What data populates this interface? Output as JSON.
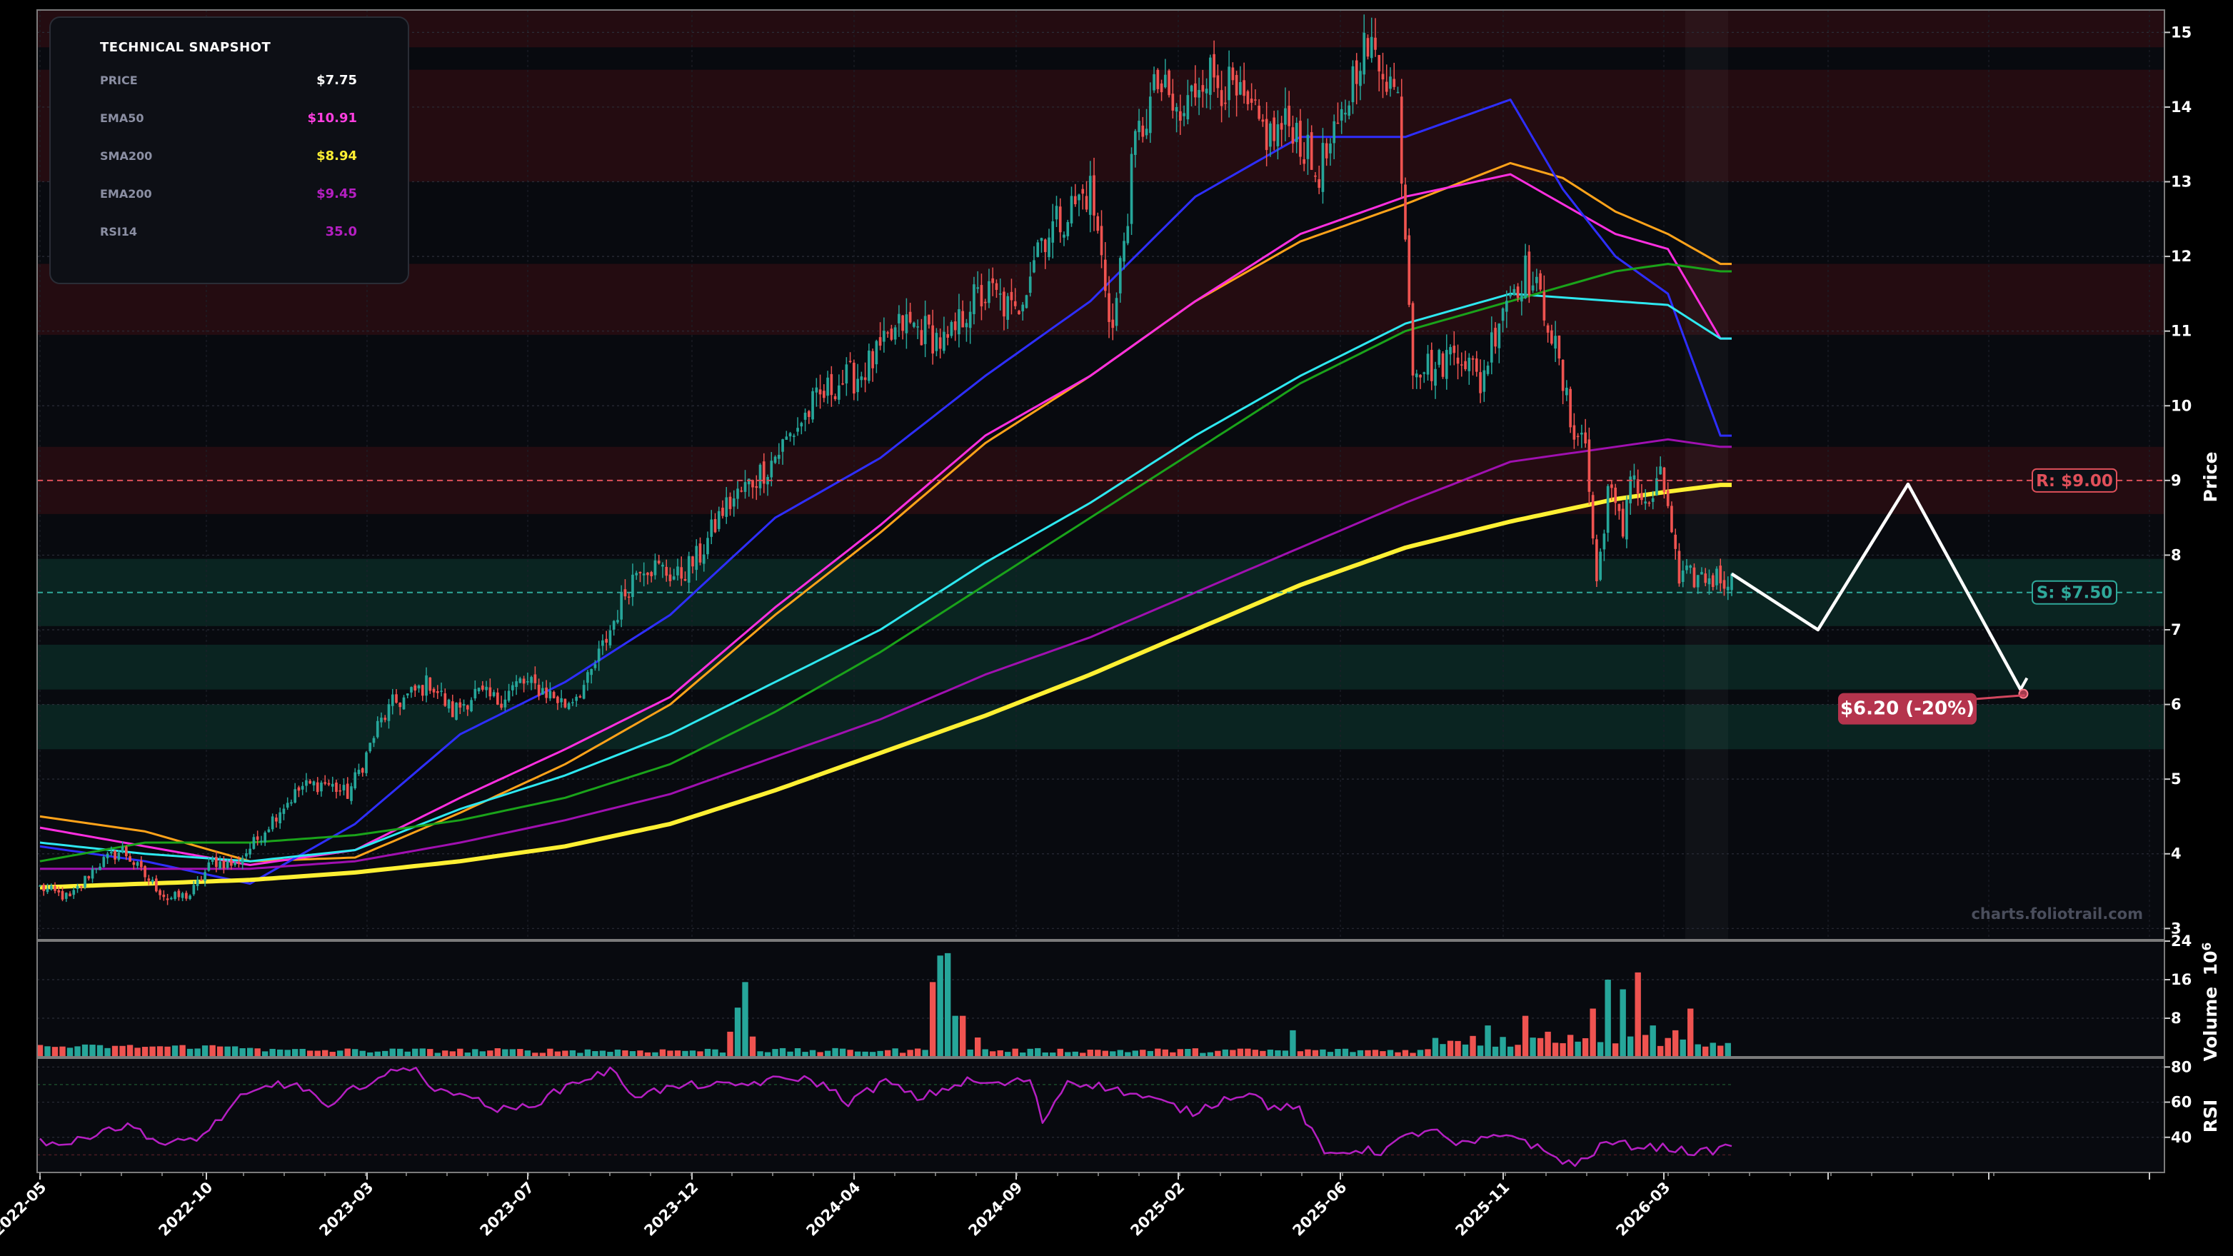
{
  "snapshot": {
    "title": "TECHNICAL SNAPSHOT",
    "rows": [
      {
        "label": "PRICE",
        "value": "$7.75",
        "color": "#ffffff"
      },
      {
        "label": "EMA50",
        "value": "$10.91",
        "color": "#ff3fe0"
      },
      {
        "label": "SMA200",
        "value": "$8.94",
        "color": "#fff033"
      },
      {
        "label": "EMA200",
        "value": "$9.45",
        "color": "#b51fc2"
      },
      {
        "label": "RSI14",
        "value": "35.0",
        "color": "#b51fc2"
      }
    ]
  },
  "watermark": "charts.foliotrail.com",
  "chart_data": {
    "type": "candlestick",
    "x_tick_labels": [
      "2022-05",
      "2022-10",
      "2023-03",
      "2023-07",
      "2023-12",
      "2024-04",
      "2024-09",
      "2025-02",
      "2025-06",
      "2025-11",
      "2026-03"
    ],
    "price_axis": {
      "label": "Price",
      "ticks": [
        3,
        4,
        5,
        6,
        7,
        8,
        9,
        10,
        11,
        12,
        13,
        14,
        15
      ],
      "range": [
        2.85,
        15.3
      ]
    },
    "volume_axis": {
      "label": "Volume",
      "exponent_label": "10",
      "exponent": "6",
      "ticks": [
        8,
        16,
        24
      ],
      "range": [
        0,
        24
      ]
    },
    "rsi_axis": {
      "label": "RSI",
      "ticks": [
        40,
        60,
        80
      ],
      "range": [
        20,
        85
      ]
    },
    "resistance": {
      "value": 9.0,
      "label": "R: $9.00",
      "color": "#e0505a"
    },
    "support": {
      "value": 7.5,
      "label": "S: $7.50",
      "color": "#2fa89a"
    },
    "target": {
      "value": 6.2,
      "label": "$6.20 (-20%)"
    },
    "resistance_zones": [
      [
        14.8,
        15.3
      ],
      [
        13.0,
        14.5
      ],
      [
        10.95,
        11.9
      ],
      [
        8.55,
        9.45
      ]
    ],
    "support_zones": [
      [
        7.05,
        7.95
      ],
      [
        6.2,
        6.8
      ],
      [
        5.4,
        6.0
      ]
    ],
    "price_anchors": [
      [
        0,
        3.55
      ],
      [
        8,
        3.4
      ],
      [
        15,
        3.85
      ],
      [
        22,
        4.05
      ],
      [
        28,
        3.7
      ],
      [
        34,
        3.4
      ],
      [
        40,
        3.45
      ],
      [
        46,
        3.9
      ],
      [
        52,
        3.85
      ],
      [
        58,
        4.2
      ],
      [
        64,
        4.6
      ],
      [
        70,
        4.9
      ],
      [
        76,
        4.95
      ],
      [
        82,
        4.8
      ],
      [
        86,
        5.2
      ],
      [
        90,
        5.7
      ],
      [
        94,
        6.0
      ],
      [
        98,
        6.1
      ],
      [
        104,
        6.3
      ],
      [
        110,
        5.9
      ],
      [
        116,
        6.15
      ],
      [
        122,
        6.05
      ],
      [
        128,
        6.3
      ],
      [
        134,
        6.2
      ],
      [
        140,
        6.0
      ],
      [
        146,
        6.3
      ],
      [
        152,
        7.0
      ],
      [
        156,
        7.5
      ],
      [
        160,
        7.9
      ],
      [
        166,
        7.8
      ],
      [
        170,
        7.7
      ],
      [
        176,
        8.0
      ],
      [
        182,
        8.6
      ],
      [
        188,
        8.9
      ],
      [
        194,
        9.2
      ],
      [
        200,
        9.6
      ],
      [
        206,
        10.0
      ],
      [
        212,
        10.3
      ],
      [
        218,
        10.4
      ],
      [
        224,
        10.7
      ],
      [
        230,
        11.1
      ],
      [
        236,
        11.0
      ],
      [
        242,
        10.8
      ],
      [
        248,
        11.4
      ],
      [
        254,
        11.5
      ],
      [
        260,
        11.2
      ],
      [
        266,
        12.2
      ],
      [
        272,
        12.5
      ],
      [
        280,
        12.9
      ],
      [
        286,
        11.0
      ],
      [
        292,
        13.5
      ],
      [
        298,
        14.3
      ],
      [
        304,
        13.8
      ],
      [
        310,
        14.5
      ],
      [
        316,
        14.3
      ],
      [
        322,
        13.9
      ],
      [
        328,
        13.6
      ],
      [
        334,
        13.8
      ],
      [
        340,
        13.1
      ],
      [
        346,
        13.6
      ],
      [
        352,
        14.8
      ],
      [
        358,
        14.6
      ],
      [
        362,
        14.1
      ],
      [
        366,
        10.6
      ],
      [
        372,
        10.5
      ],
      [
        378,
        10.8
      ],
      [
        384,
        10.3
      ],
      [
        390,
        11.4
      ],
      [
        396,
        11.8
      ],
      [
        402,
        11.2
      ],
      [
        408,
        9.8
      ],
      [
        412,
        9.5
      ],
      [
        415,
        7.6
      ],
      [
        418,
        8.9
      ],
      [
        422,
        8.3
      ],
      [
        424,
        9.2
      ],
      [
        428,
        8.6
      ],
      [
        432,
        9.0
      ],
      [
        434,
        8.7
      ],
      [
        437,
        7.6
      ],
      [
        439,
        7.7
      ]
    ],
    "ma_series": [
      {
        "color": "#ffa31a",
        "anchors": [
          [
            0,
            4.5
          ],
          [
            28,
            4.3
          ],
          [
            56,
            3.9
          ],
          [
            84,
            3.95
          ],
          [
            112,
            4.55
          ],
          [
            140,
            5.2
          ],
          [
            168,
            6.0
          ],
          [
            196,
            7.2
          ],
          [
            224,
            8.3
          ],
          [
            252,
            9.5
          ],
          [
            280,
            10.4
          ],
          [
            308,
            11.4
          ],
          [
            336,
            12.2
          ],
          [
            364,
            12.7
          ],
          [
            392,
            13.25
          ],
          [
            406,
            13.05
          ],
          [
            420,
            12.6
          ],
          [
            434,
            12.3
          ],
          [
            448,
            11.9
          ]
        ]
      },
      {
        "color": "#ff2fe0",
        "anchors": [
          [
            0,
            4.35
          ],
          [
            28,
            4.1
          ],
          [
            56,
            3.85
          ],
          [
            84,
            4.05
          ],
          [
            112,
            4.75
          ],
          [
            140,
            5.4
          ],
          [
            168,
            6.1
          ],
          [
            196,
            7.3
          ],
          [
            224,
            8.4
          ],
          [
            252,
            9.6
          ],
          [
            280,
            10.4
          ],
          [
            308,
            11.4
          ],
          [
            336,
            12.3
          ],
          [
            364,
            12.8
          ],
          [
            392,
            13.1
          ],
          [
            406,
            12.7
          ],
          [
            420,
            12.3
          ],
          [
            434,
            12.1
          ],
          [
            448,
            10.9
          ]
        ]
      },
      {
        "color": "#2e2eff",
        "anchors": [
          [
            0,
            4.1
          ],
          [
            28,
            3.9
          ],
          [
            56,
            3.6
          ],
          [
            84,
            4.4
          ],
          [
            112,
            5.6
          ],
          [
            140,
            6.3
          ],
          [
            168,
            7.2
          ],
          [
            196,
            8.5
          ],
          [
            224,
            9.3
          ],
          [
            252,
            10.4
          ],
          [
            280,
            11.4
          ],
          [
            308,
            12.8
          ],
          [
            336,
            13.6
          ],
          [
            364,
            13.6
          ],
          [
            392,
            14.1
          ],
          [
            406,
            12.9
          ],
          [
            420,
            12.0
          ],
          [
            434,
            11.5
          ],
          [
            448,
            9.6
          ]
        ]
      },
      {
        "color": "#2ee8f0",
        "anchors": [
          [
            0,
            4.15
          ],
          [
            28,
            4.0
          ],
          [
            56,
            3.9
          ],
          [
            84,
            4.05
          ],
          [
            112,
            4.6
          ],
          [
            140,
            5.05
          ],
          [
            168,
            5.6
          ],
          [
            196,
            6.3
          ],
          [
            224,
            7.0
          ],
          [
            252,
            7.9
          ],
          [
            280,
            8.7
          ],
          [
            308,
            9.6
          ],
          [
            336,
            10.4
          ],
          [
            364,
            11.1
          ],
          [
            392,
            11.5
          ],
          [
            406,
            11.45
          ],
          [
            420,
            11.4
          ],
          [
            434,
            11.35
          ],
          [
            448,
            10.9
          ]
        ]
      },
      {
        "color": "#1aa31a",
        "anchors": [
          [
            0,
            3.9
          ],
          [
            28,
            4.15
          ],
          [
            56,
            4.15
          ],
          [
            84,
            4.25
          ],
          [
            112,
            4.45
          ],
          [
            140,
            4.75
          ],
          [
            168,
            5.2
          ],
          [
            196,
            5.9
          ],
          [
            224,
            6.7
          ],
          [
            252,
            7.6
          ],
          [
            280,
            8.5
          ],
          [
            308,
            9.4
          ],
          [
            336,
            10.3
          ],
          [
            364,
            11.0
          ],
          [
            392,
            11.4
          ],
          [
            406,
            11.6
          ],
          [
            420,
            11.8
          ],
          [
            434,
            11.9
          ],
          [
            448,
            11.8
          ]
        ]
      },
      {
        "color": "#a010b0",
        "anchors": [
          [
            0,
            3.8
          ],
          [
            28,
            3.8
          ],
          [
            56,
            3.8
          ],
          [
            84,
            3.9
          ],
          [
            112,
            4.15
          ],
          [
            140,
            4.45
          ],
          [
            168,
            4.8
          ],
          [
            196,
            5.3
          ],
          [
            224,
            5.8
          ],
          [
            252,
            6.4
          ],
          [
            280,
            6.9
          ],
          [
            308,
            7.5
          ],
          [
            336,
            8.1
          ],
          [
            364,
            8.7
          ],
          [
            392,
            9.25
          ],
          [
            406,
            9.35
          ],
          [
            420,
            9.45
          ],
          [
            434,
            9.55
          ],
          [
            448,
            9.45
          ]
        ]
      }
    ],
    "sma200": {
      "color": "#fff033",
      "anchors": [
        [
          0,
          3.55
        ],
        [
          28,
          3.6
        ],
        [
          56,
          3.65
        ],
        [
          84,
          3.75
        ],
        [
          112,
          3.9
        ],
        [
          140,
          4.1
        ],
        [
          168,
          4.4
        ],
        [
          196,
          4.85
        ],
        [
          224,
          5.35
        ],
        [
          252,
          5.85
        ],
        [
          280,
          6.4
        ],
        [
          308,
          7.0
        ],
        [
          336,
          7.6
        ],
        [
          364,
          8.1
        ],
        [
          392,
          8.45
        ],
        [
          406,
          8.6
        ],
        [
          420,
          8.75
        ],
        [
          434,
          8.85
        ],
        [
          448,
          8.94
        ]
      ]
    },
    "projection": {
      "path_values": [
        7.75,
        7.0,
        8.95,
        6.2
      ],
      "path_days": [
        0,
        23,
        47,
        77
      ]
    },
    "volume_base": {
      "quiet": 0.8,
      "active": 1.6
    },
    "volume_spikes": [
      [
        184,
        5.2
      ],
      [
        186,
        10.2
      ],
      [
        188,
        15.5
      ],
      [
        190,
        4.2
      ],
      [
        238,
        15.5
      ],
      [
        240,
        21.0
      ],
      [
        242,
        21.5
      ],
      [
        244,
        8.5
      ],
      [
        246,
        8.5
      ],
      [
        250,
        4.0
      ],
      [
        334,
        5.5
      ],
      [
        386,
        6.5
      ],
      [
        396,
        8.5
      ],
      [
        402,
        5.2
      ],
      [
        414,
        10.0
      ],
      [
        418,
        16.0
      ],
      [
        422,
        14.0
      ],
      [
        426,
        17.5
      ],
      [
        430,
        6.5
      ],
      [
        436,
        5.5
      ],
      [
        440,
        10.0
      ]
    ],
    "rsi_anchors": [
      [
        0,
        38
      ],
      [
        10,
        36
      ],
      [
        20,
        45
      ],
      [
        30,
        46
      ],
      [
        40,
        35
      ],
      [
        52,
        41
      ],
      [
        64,
        62
      ],
      [
        76,
        71
      ],
      [
        86,
        67
      ],
      [
        92,
        55
      ],
      [
        100,
        68
      ],
      [
        110,
        75
      ],
      [
        120,
        81
      ],
      [
        126,
        65
      ],
      [
        134,
        67
      ],
      [
        142,
        58
      ],
      [
        150,
        55
      ],
      [
        160,
        61
      ],
      [
        170,
        71
      ],
      [
        182,
        78
      ],
      [
        190,
        64
      ],
      [
        198,
        67
      ],
      [
        210,
        70
      ],
      [
        220,
        69
      ],
      [
        232,
        72
      ],
      [
        242,
        74
      ],
      [
        250,
        70
      ],
      [
        258,
        60
      ],
      [
        270,
        72
      ],
      [
        280,
        62
      ],
      [
        296,
        72
      ],
      [
        306,
        70
      ],
      [
        316,
        73
      ],
      [
        320,
        49
      ],
      [
        328,
        72
      ],
      [
        336,
        70
      ],
      [
        346,
        66
      ],
      [
        358,
        60
      ],
      [
        368,
        54
      ],
      [
        378,
        62
      ],
      [
        386,
        66
      ],
      [
        392,
        58
      ],
      [
        402,
        56
      ],
      [
        410,
        30
      ],
      [
        420,
        33
      ],
      [
        428,
        32
      ],
      [
        436,
        40
      ],
      [
        444,
        45
      ],
      [
        452,
        35
      ],
      [
        460,
        38
      ],
      [
        470,
        42
      ],
      [
        482,
        30
      ],
      [
        490,
        24
      ],
      [
        500,
        37
      ],
      [
        510,
        35
      ],
      [
        520,
        34
      ],
      [
        530,
        31
      ],
      [
        540,
        35
      ]
    ],
    "rsi_end": 35.0,
    "x_count": 452
  }
}
